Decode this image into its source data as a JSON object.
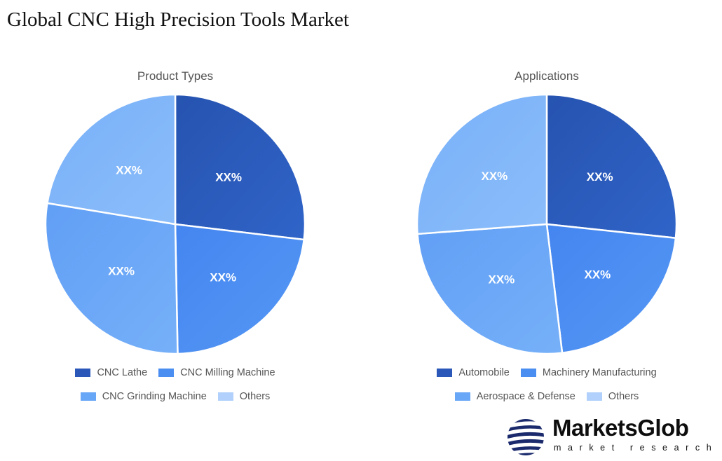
{
  "page": {
    "title": "Global CNC High Precision Tools Market"
  },
  "colors": {
    "c1": "#2b57b8",
    "c2": "#4b8ef2",
    "c3": "#68a6f7",
    "c4": "#84b8f9",
    "legend4": "#b1d0fb"
  },
  "chart_data": [
    {
      "type": "pie",
      "title": "Product Types",
      "categories": [
        "CNC Lathe",
        "CNC Milling Machine",
        "CNC Grinding Machine",
        "Others"
      ],
      "values": [
        26.9,
        22.8,
        27.9,
        22.4
      ],
      "labels": [
        "XX%",
        "XX%",
        "XX%",
        "XX%"
      ],
      "legend_position": "bottom"
    },
    {
      "type": "pie",
      "title": "Applications",
      "categories": [
        "Automobile",
        "Machinery Manufacturing",
        "Aerospace & Defense",
        "Others"
      ],
      "values": [
        26.7,
        21.4,
        25.7,
        26.2
      ],
      "labels": [
        "XX%",
        "XX%",
        "XX%",
        "XX%"
      ],
      "legend_position": "bottom"
    }
  ],
  "logo": {
    "name": "MarketsGlob",
    "tagline": "market research"
  }
}
